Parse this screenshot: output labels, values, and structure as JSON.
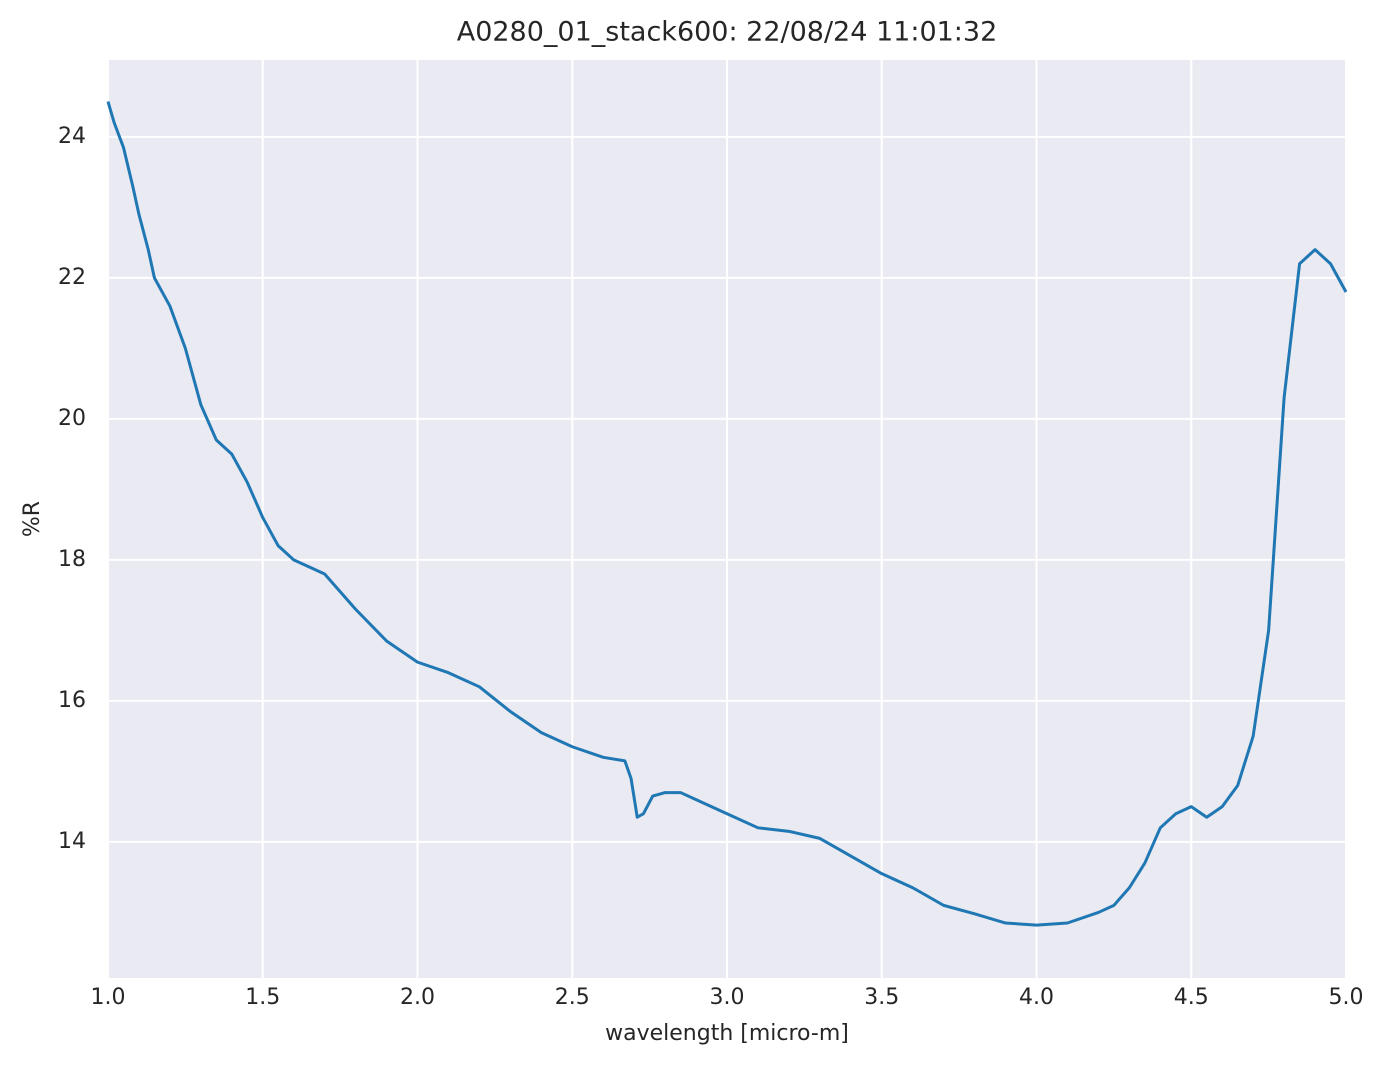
{
  "chart_data": {
    "type": "line",
    "title": "A0280_01_stack600:  22/08/24 11:01:32",
    "xlabel": "wavelength [micro-m]",
    "ylabel": "%R",
    "x": [
      1.0,
      1.02,
      1.05,
      1.08,
      1.1,
      1.13,
      1.15,
      1.2,
      1.25,
      1.3,
      1.35,
      1.4,
      1.45,
      1.5,
      1.55,
      1.6,
      1.7,
      1.8,
      1.9,
      2.0,
      2.1,
      2.2,
      2.3,
      2.4,
      2.5,
      2.6,
      2.67,
      2.69,
      2.71,
      2.73,
      2.76,
      2.8,
      2.85,
      2.9,
      3.0,
      3.1,
      3.2,
      3.3,
      3.4,
      3.5,
      3.6,
      3.7,
      3.8,
      3.9,
      4.0,
      4.1,
      4.2,
      4.25,
      4.3,
      4.35,
      4.4,
      4.45,
      4.5,
      4.55,
      4.6,
      4.65,
      4.7,
      4.75,
      4.8,
      4.85,
      4.9,
      4.95,
      5.0
    ],
    "series": [
      {
        "name": "%R",
        "color": "#1f77b4",
        "values": [
          24.5,
          24.2,
          23.85,
          23.3,
          22.9,
          22.4,
          22.0,
          21.6,
          21.0,
          20.2,
          19.7,
          19.5,
          19.1,
          18.6,
          18.2,
          18.0,
          17.8,
          17.3,
          16.85,
          16.55,
          16.4,
          16.2,
          15.85,
          15.55,
          15.35,
          15.2,
          15.15,
          14.9,
          14.35,
          14.4,
          14.65,
          14.7,
          14.7,
          14.6,
          14.4,
          14.2,
          14.15,
          14.05,
          13.8,
          13.55,
          13.35,
          13.1,
          12.98,
          12.85,
          12.82,
          12.85,
          13.0,
          13.1,
          13.35,
          13.7,
          14.2,
          14.4,
          14.5,
          14.35,
          14.5,
          14.8,
          15.5,
          17.0,
          20.3,
          22.2,
          22.4,
          22.2,
          21.8
        ]
      }
    ],
    "xlim": [
      1,
      5
    ],
    "ylim": [
      12.07,
      25.09
    ],
    "xticks": [
      {
        "value": 1,
        "label": "1.0"
      },
      1.5,
      {
        "value": 2,
        "label": "2.0"
      },
      2.5,
      {
        "value": 3,
        "label": "3.0"
      },
      3.5,
      {
        "value": 4,
        "label": "4.0"
      },
      4.5,
      {
        "value": 5,
        "label": "5.0"
      }
    ],
    "yticks": [
      14,
      16,
      18,
      20,
      22,
      24
    ],
    "grid": true
  }
}
